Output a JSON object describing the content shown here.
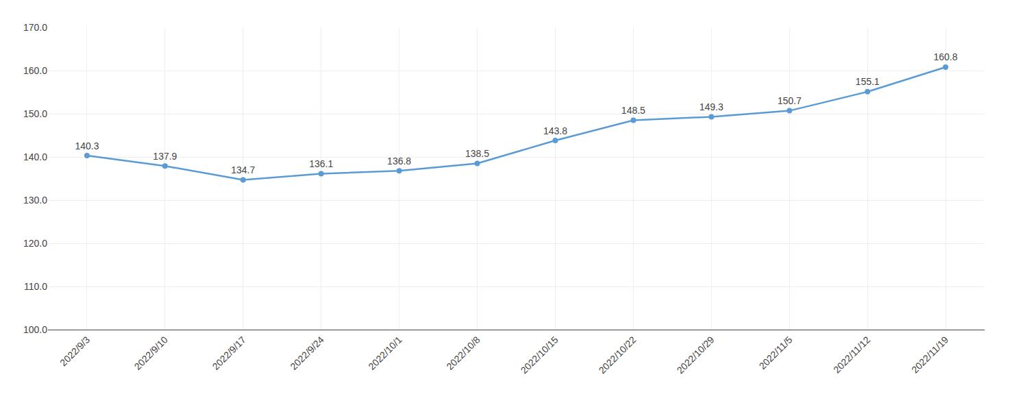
{
  "chart_data": {
    "type": "line",
    "categories": [
      "2022/9/3",
      "2022/9/10",
      "2022/9/17",
      "2022/9/24",
      "2022/10/1",
      "2022/10/8",
      "2022/10/15",
      "2022/10/22",
      "2022/10/29",
      "2022/11/5",
      "2022/11/12",
      "2022/11/19"
    ],
    "values": [
      140.3,
      137.9,
      134.7,
      136.1,
      136.8,
      138.5,
      143.8,
      148.5,
      149.3,
      150.7,
      155.1,
      160.8
    ],
    "color": "#5B9BD5",
    "marker": "circle",
    "line_style": "solid",
    "ylim": [
      100.0,
      170.0
    ],
    "yticks": [
      {
        "value": 100.0,
        "label": "100.0"
      },
      {
        "value": 110.0,
        "label": "110.0"
      },
      {
        "value": 120.0,
        "label": "120.0"
      },
      {
        "value": 130.0,
        "label": "130.0"
      },
      {
        "value": 140.0,
        "label": "140.0"
      },
      {
        "value": 150.0,
        "label": "150.0"
      },
      {
        "value": 160.0,
        "label": "160.0"
      },
      {
        "value": 170.0,
        "label": "170.0"
      }
    ],
    "grid": true,
    "data_labels": true
  }
}
